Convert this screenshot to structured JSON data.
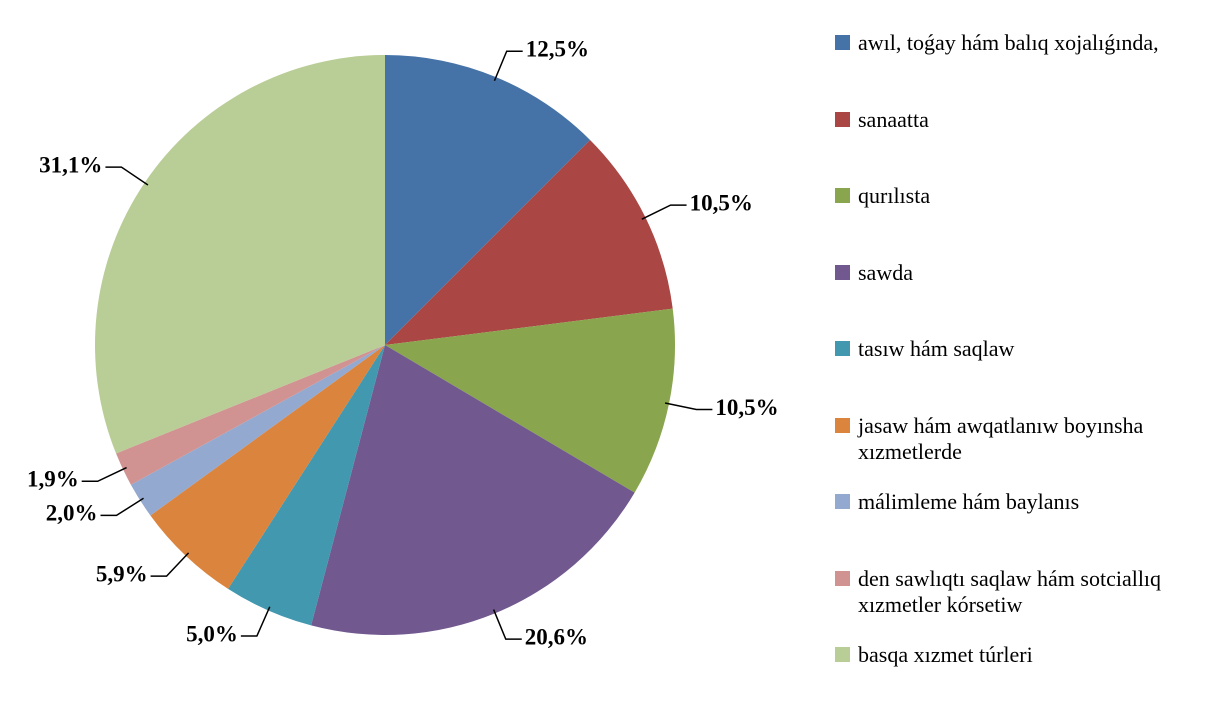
{
  "chart_data": {
    "type": "pie",
    "categories": [
      "awıl, toǵay hám balıq xojalıǵında,",
      "sanaatta",
      "qurılısta",
      "sawda",
      "tasıw hám saqlaw",
      "jasaw hám awqatlanıw boyınsha xızmetlerde",
      "málimleme hám baylanıs",
      "den sawlıqtı saqlaw hám sotciallıq xızmetler kórsetiw",
      "basqa xızmet túrleri"
    ],
    "values": [
      12.5,
      10.5,
      10.5,
      20.6,
      5.0,
      5.9,
      2.0,
      1.9,
      31.1
    ],
    "value_labels": [
      "12,5%",
      "10,5%",
      "10,5%",
      "20,6%",
      "5,0%",
      "5,9%",
      "2,0%",
      "1,9%",
      "31,1%"
    ],
    "colors": [
      "#4572a7",
      "#aa4643",
      "#89a54e",
      "#71588f",
      "#4198af",
      "#db843d",
      "#93a9cf",
      "#d19392",
      "#b9cd96"
    ],
    "legend": "right"
  }
}
